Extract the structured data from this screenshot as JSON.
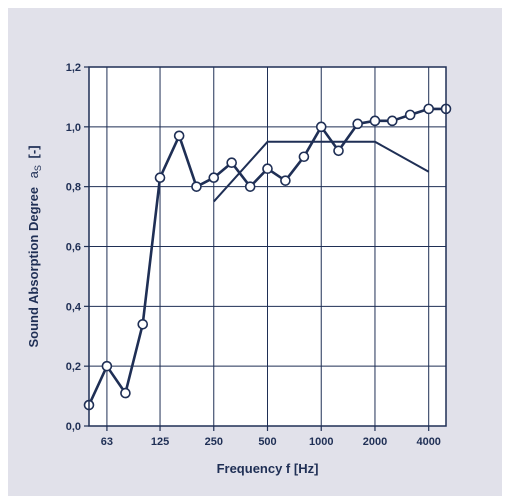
{
  "chart_data": {
    "type": "line",
    "xlabel": "Frequency f [Hz]",
    "ylabel": "Sound Absorption Degree",
    "ylabel_symbol": "a",
    "ylabel_subscript": "S",
    "ylabel_unit": "[-]",
    "x_scale": "log",
    "xlim": [
      50,
      5000
    ],
    "ylim": [
      0,
      1.2
    ],
    "x_tick_labels": [
      "63",
      "125",
      "250",
      "500",
      "1000",
      "2000",
      "4000"
    ],
    "x_tick_values": [
      63,
      125,
      250,
      500,
      1000,
      2000,
      4000
    ],
    "y_tick_labels": [
      "0,0",
      "0,2",
      "0,4",
      "0,6",
      "0,8",
      "1,0",
      "1,2"
    ],
    "y_tick_values": [
      0,
      0.2,
      0.4,
      0.6,
      0.8,
      1.0,
      1.2
    ],
    "grid": true,
    "series": [
      {
        "style": "line-markers",
        "x": [
          50,
          63,
          80,
          100,
          125,
          160,
          200,
          250,
          315,
          400,
          500,
          630,
          800,
          1000,
          1250,
          1600,
          2000,
          2500,
          3150,
          4000,
          5000
        ],
        "y": [
          0.07,
          0.2,
          0.11,
          0.34,
          0.83,
          0.97,
          0.8,
          0.83,
          0.88,
          0.8,
          0.86,
          0.82,
          0.9,
          1.0,
          0.92,
          1.01,
          1.02,
          1.02,
          1.04,
          1.06,
          1.06
        ]
      },
      {
        "style": "line",
        "x": [
          250,
          500,
          2000,
          4000
        ],
        "y": [
          0.75,
          0.95,
          0.95,
          0.85
        ]
      }
    ],
    "colors": {
      "line": "#1f2f55",
      "marker_fill": "#ffffff",
      "grid": "#1f2f55",
      "background": "#ffffff",
      "panel": "#e1e1ea"
    }
  }
}
